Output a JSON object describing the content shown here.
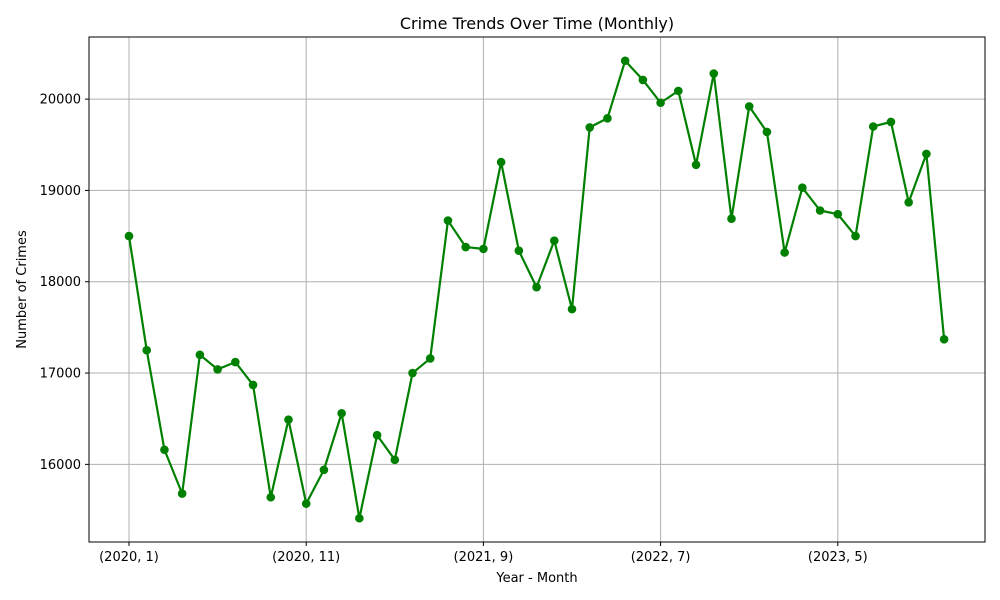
{
  "chart_data": {
    "type": "line",
    "title": "Crime Trends Over Time (Monthly)",
    "xlabel": "Year - Month",
    "ylabel": "Number of Crimes",
    "x_tick_labels": [
      "(2020, 1)",
      "(2020, 11)",
      "(2021, 9)",
      "(2022, 7)",
      "(2023, 5)"
    ],
    "x_tick_indices": [
      0,
      10,
      20,
      30,
      40
    ],
    "y_ticks": [
      16000,
      17000,
      18000,
      19000,
      20000
    ],
    "ylim": [
      15150,
      20680
    ],
    "grid": true,
    "color": "#008000",
    "x": [
      "(2020, 1)",
      "(2020, 2)",
      "(2020, 3)",
      "(2020, 4)",
      "(2020, 5)",
      "(2020, 6)",
      "(2020, 7)",
      "(2020, 8)",
      "(2020, 9)",
      "(2020, 10)",
      "(2020, 11)",
      "(2020, 12)",
      "(2021, 1)",
      "(2021, 2)",
      "(2021, 3)",
      "(2021, 4)",
      "(2021, 5)",
      "(2021, 6)",
      "(2021, 7)",
      "(2021, 8)",
      "(2021, 9)",
      "(2021, 10)",
      "(2021, 11)",
      "(2021, 12)",
      "(2022, 1)",
      "(2022, 2)",
      "(2022, 3)",
      "(2022, 4)",
      "(2022, 5)",
      "(2022, 6)",
      "(2022, 7)",
      "(2022, 8)",
      "(2022, 9)",
      "(2022, 10)",
      "(2022, 11)",
      "(2022, 12)",
      "(2023, 1)",
      "(2023, 2)",
      "(2023, 3)",
      "(2023, 4)",
      "(2023, 5)",
      "(2023, 6)",
      "(2023, 7)",
      "(2023, 8)",
      "(2023, 9)",
      "(2023, 10)",
      "(2023, 11)"
    ],
    "values": [
      18500,
      17250,
      16160,
      15680,
      17200,
      17040,
      17120,
      16870,
      15640,
      16490,
      15570,
      15940,
      16560,
      15410,
      16320,
      16050,
      17000,
      17160,
      18670,
      18380,
      18360,
      19310,
      18340,
      17940,
      18450,
      17700,
      19690,
      19790,
      20420,
      20210,
      19960,
      20090,
      19280,
      20280,
      18690,
      19920,
      19640,
      18320,
      19030,
      18780,
      18740,
      18500,
      19700,
      19750,
      18870,
      19400,
      17370
    ]
  }
}
